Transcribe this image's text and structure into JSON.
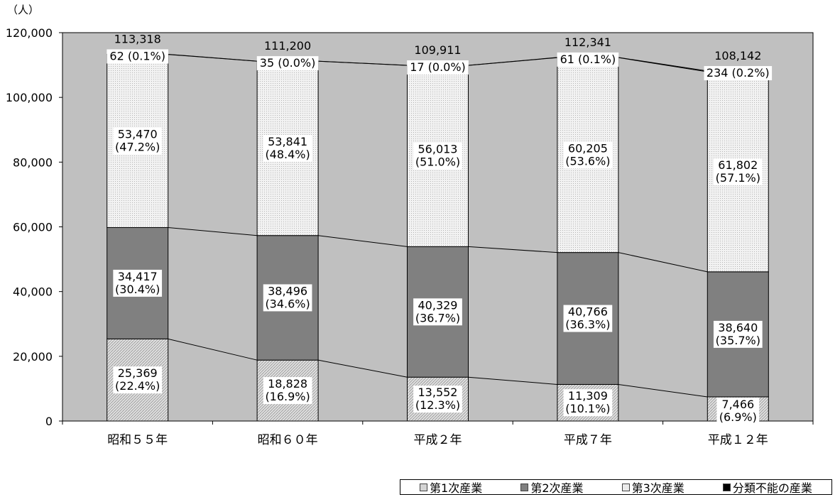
{
  "chart_data": {
    "type": "bar",
    "stacked": true,
    "unit_label": "（人）",
    "title": "",
    "xlabel": "",
    "ylabel": "",
    "ylim": [
      0,
      120000
    ],
    "y_ticks": [
      "0",
      "20,000",
      "40,000",
      "60,000",
      "80,000",
      "100,000",
      "120,000"
    ],
    "grid": false,
    "legend_position": "bottom-right",
    "categories": [
      "昭和５５年",
      "昭和６０年",
      "平成２年",
      "平成７年",
      "平成１２年"
    ],
    "totals": [
      113318,
      111200,
      109911,
      112341,
      108142
    ],
    "total_labels": [
      "113,318",
      "111,200",
      "109,911",
      "112,341",
      "108,142"
    ],
    "series": [
      {
        "name": "第1次産業",
        "color": "#d4d4d4",
        "values": [
          25369,
          18828,
          13552,
          11309,
          7466
        ],
        "value_labels": [
          "25,369",
          "18,828",
          "13,552",
          "11,309",
          "7,466"
        ],
        "pct_labels": [
          "(22.4%)",
          "(16.9%)",
          "(12.3%)",
          "(10.1%)",
          "(6.9%)"
        ]
      },
      {
        "name": "第2次産業",
        "color": "#808080",
        "values": [
          34417,
          38496,
          40329,
          40766,
          38640
        ],
        "value_labels": [
          "34,417",
          "38,496",
          "40,329",
          "40,766",
          "38,640"
        ],
        "pct_labels": [
          "(30.4%)",
          "(34.6%)",
          "(36.7%)",
          "(36.3%)",
          "(35.7%)"
        ]
      },
      {
        "name": "第3次産業",
        "color": "#ebebeb",
        "values": [
          53470,
          53841,
          56013,
          60205,
          61802
        ],
        "value_labels": [
          "53,470",
          "53,841",
          "56,013",
          "60,205",
          "61,802"
        ],
        "pct_labels": [
          "(47.2%)",
          "(48.4%)",
          "(51.0%)",
          "(53.6%)",
          "(57.1%)"
        ]
      },
      {
        "name": "分類不能の産業",
        "color": "#000000",
        "values": [
          62,
          35,
          17,
          61,
          234
        ],
        "value_labels": [
          "62 (0.1%)",
          "35 (0.0%)",
          "17 (0.0%)",
          "61 (0.1%)",
          "234 (0.2%)"
        ]
      }
    ]
  }
}
